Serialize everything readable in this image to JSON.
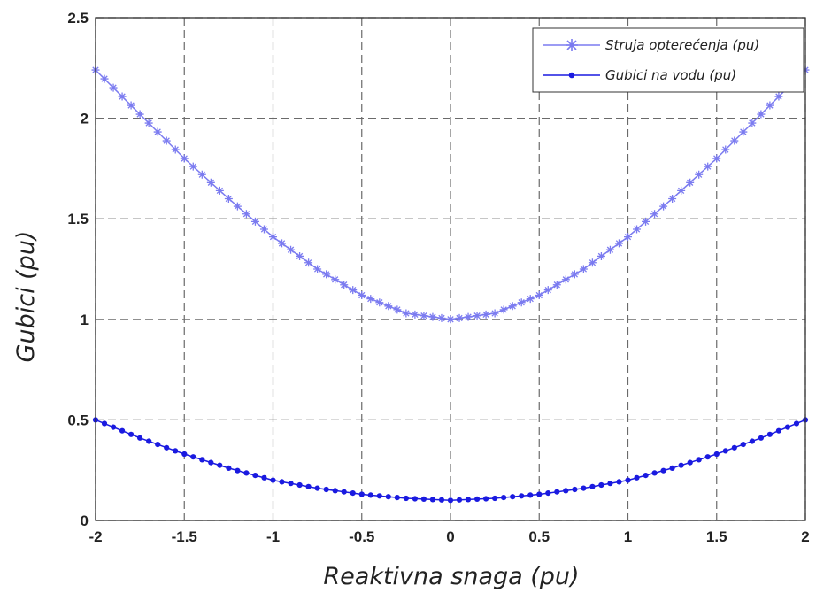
{
  "chart_data": {
    "type": "line",
    "xlabel": "Reaktivna snaga (pu)",
    "ylabel": "Gubici (pu)",
    "xlim": [
      -2,
      2
    ],
    "ylim": [
      0,
      2.5
    ],
    "x_ticks": [
      "-2",
      "-1.5",
      "-1",
      "-0.5",
      "0",
      "0.5",
      "1",
      "1.5",
      "2"
    ],
    "y_ticks": [
      "0",
      "0.5",
      "1",
      "1.5",
      "2",
      "2.5"
    ],
    "grid": true,
    "legend_position": "top-right",
    "x": [
      -2.0,
      -1.75,
      -1.5,
      -1.25,
      -1.0,
      -0.75,
      -0.5,
      -0.25,
      0.0,
      0.25,
      0.5,
      0.75,
      1.0,
      1.25,
      1.5,
      1.75,
      2.0
    ],
    "series": [
      {
        "name": "Struja opterećenja (pu)",
        "marker": "star",
        "color": "#7b7bf0",
        "values": [
          2.24,
          2.02,
          1.8,
          1.6,
          1.41,
          1.25,
          1.12,
          1.03,
          1.0,
          1.03,
          1.12,
          1.25,
          1.41,
          1.6,
          1.8,
          2.02,
          2.24
        ]
      },
      {
        "name": "Gubici na vodu (pu)",
        "marker": "dot",
        "color": "#1a1ae0",
        "values": [
          0.5,
          0.41,
          0.33,
          0.26,
          0.2,
          0.16,
          0.13,
          0.11,
          0.1,
          0.11,
          0.13,
          0.16,
          0.2,
          0.26,
          0.33,
          0.41,
          0.5
        ]
      }
    ]
  }
}
